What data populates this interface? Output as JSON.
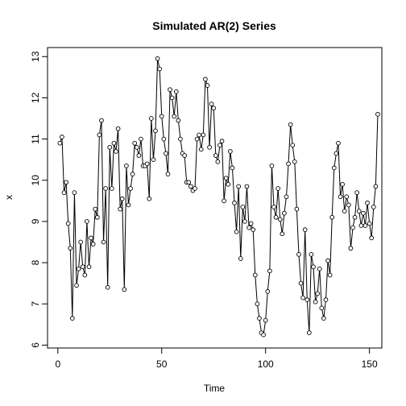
{
  "chart_data": {
    "type": "line",
    "title": "Simulated AR(2) Series",
    "xlabel": "Time",
    "ylabel": "x",
    "xlim": [
      1,
      150
    ],
    "ylim": [
      6.2,
      12.95
    ],
    "x_ticks": [
      0,
      50,
      100,
      150
    ],
    "y_ticks": [
      6,
      7,
      8,
      9,
      10,
      11,
      12,
      13
    ],
    "grid": false,
    "legend": "none",
    "marker": "open-circle",
    "colors": {
      "line": "#000000",
      "background": "#ffffff"
    },
    "series": [
      {
        "values": [
          10.9,
          11.05,
          9.7,
          9.95,
          8.95,
          8.35,
          6.65,
          9.7,
          7.45,
          7.85,
          8.5,
          7.9,
          7.7,
          9.0,
          7.9,
          8.6,
          8.45,
          9.3,
          9.1,
          11.1,
          11.45,
          8.5,
          9.8,
          7.4,
          10.8,
          9.8,
          10.9,
          10.7,
          11.25,
          9.3,
          9.55,
          7.35,
          10.35,
          9.4,
          9.8,
          10.15,
          10.9,
          10.8,
          10.6,
          11.0,
          10.35,
          10.35,
          10.4,
          9.55,
          11.5,
          10.5,
          11.2,
          12.95,
          12.7,
          11.55,
          11.0,
          10.65,
          10.15,
          12.2,
          12.0,
          11.55,
          12.15,
          11.45,
          11.0,
          10.65,
          10.6,
          9.95,
          9.95,
          9.85,
          9.75,
          9.8,
          11.0,
          11.1,
          10.75,
          11.1,
          12.45,
          12.3,
          10.8,
          11.85,
          11.75,
          10.6,
          10.45,
          10.85,
          10.95,
          9.5,
          10.05,
          9.9,
          10.7,
          10.3,
          9.45,
          8.75,
          9.85,
          8.1,
          9.35,
          9.0,
          9.85,
          8.85,
          8.95,
          8.8,
          7.7,
          7.0,
          6.65,
          6.3,
          6.25,
          6.6,
          7.3,
          7.8,
          10.35,
          9.35,
          9.1,
          9.8,
          9.05,
          8.7,
          9.2,
          9.6,
          10.4,
          11.35,
          10.85,
          10.45,
          9.3,
          8.2,
          7.5,
          7.15,
          8.8,
          7.1,
          6.3,
          8.2,
          7.9,
          7.05,
          7.25,
          7.85,
          6.9,
          6.65,
          7.1,
          8.05,
          7.7,
          9.1,
          10.3,
          10.65,
          10.9,
          9.6,
          9.9,
          9.25,
          9.6,
          9.4,
          8.35,
          8.85,
          9.1,
          9.7,
          9.25,
          8.9,
          9.2,
          8.9,
          9.45,
          8.95,
          8.6,
          9.35,
          9.85,
          11.6
        ]
      }
    ]
  }
}
